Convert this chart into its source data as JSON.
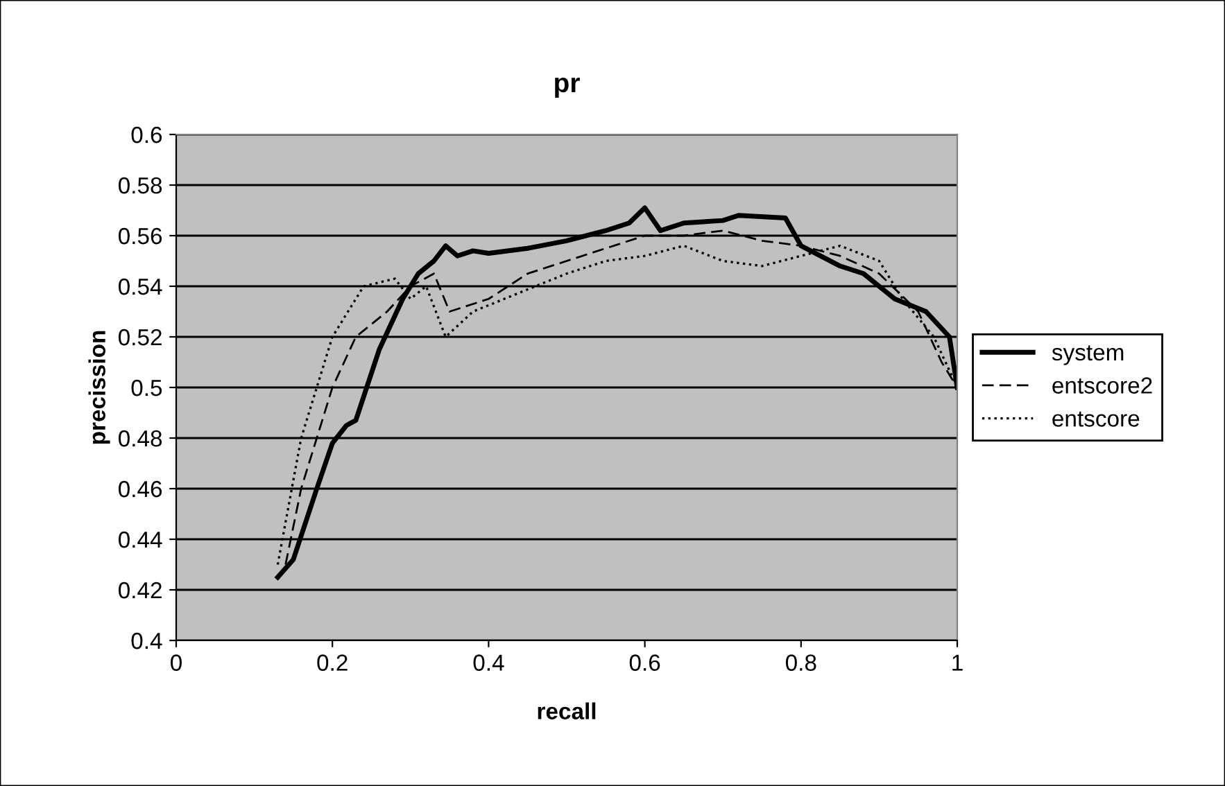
{
  "chart_data": {
    "type": "line",
    "title": "pr",
    "xlabel": "recall",
    "ylabel": "precission",
    "xlim": [
      0,
      1
    ],
    "xticks": [
      0,
      0.2,
      0.4,
      0.6,
      0.8,
      1
    ],
    "ylim": [
      0.4,
      0.6
    ],
    "yticks": [
      0.4,
      0.42,
      0.44,
      0.46,
      0.48,
      0.5,
      0.52,
      0.54,
      0.56,
      0.58,
      0.6
    ],
    "grid": "y",
    "legend": "right",
    "marker": "none",
    "series": [
      {
        "name": "system",
        "color": "#000000",
        "line_style": "solid",
        "x": [
          0.13,
          0.15,
          0.18,
          0.2,
          0.218,
          0.23,
          0.26,
          0.29,
          0.31,
          0.33,
          0.345,
          0.36,
          0.38,
          0.4,
          0.45,
          0.5,
          0.55,
          0.58,
          0.6,
          0.62,
          0.65,
          0.7,
          0.72,
          0.78,
          0.8,
          0.85,
          0.88,
          0.92,
          0.96,
          0.99,
          1.0
        ],
        "values": [
          0.425,
          0.432,
          0.46,
          0.478,
          0.485,
          0.487,
          0.515,
          0.535,
          0.545,
          0.55,
          0.556,
          0.552,
          0.554,
          0.553,
          0.555,
          0.558,
          0.562,
          0.565,
          0.571,
          0.562,
          0.565,
          0.566,
          0.568,
          0.567,
          0.556,
          0.548,
          0.545,
          0.535,
          0.53,
          0.52,
          0.5
        ]
      },
      {
        "name": "entscore2",
        "color": "#000000",
        "line_style": "dashed",
        "x": [
          0.14,
          0.16,
          0.18,
          0.2,
          0.23,
          0.27,
          0.3,
          0.33,
          0.35,
          0.4,
          0.45,
          0.5,
          0.55,
          0.6,
          0.65,
          0.7,
          0.75,
          0.8,
          0.85,
          0.9,
          0.95,
          0.98,
          1.0
        ],
        "values": [
          0.43,
          0.46,
          0.48,
          0.5,
          0.52,
          0.53,
          0.54,
          0.545,
          0.53,
          0.535,
          0.545,
          0.55,
          0.555,
          0.56,
          0.56,
          0.562,
          0.558,
          0.556,
          0.552,
          0.545,
          0.53,
          0.51,
          0.5
        ]
      },
      {
        "name": "entscore",
        "color": "#000000",
        "line_style": "dotted",
        "x": [
          0.13,
          0.16,
          0.2,
          0.24,
          0.28,
          0.3,
          0.32,
          0.345,
          0.38,
          0.42,
          0.5,
          0.55,
          0.6,
          0.65,
          0.7,
          0.75,
          0.8,
          0.85,
          0.9,
          0.93,
          0.97,
          1.0
        ],
        "values": [
          0.43,
          0.48,
          0.52,
          0.54,
          0.543,
          0.535,
          0.54,
          0.52,
          0.53,
          0.535,
          0.545,
          0.55,
          0.552,
          0.556,
          0.55,
          0.548,
          0.552,
          0.556,
          0.55,
          0.535,
          0.52,
          0.5
        ]
      }
    ]
  }
}
